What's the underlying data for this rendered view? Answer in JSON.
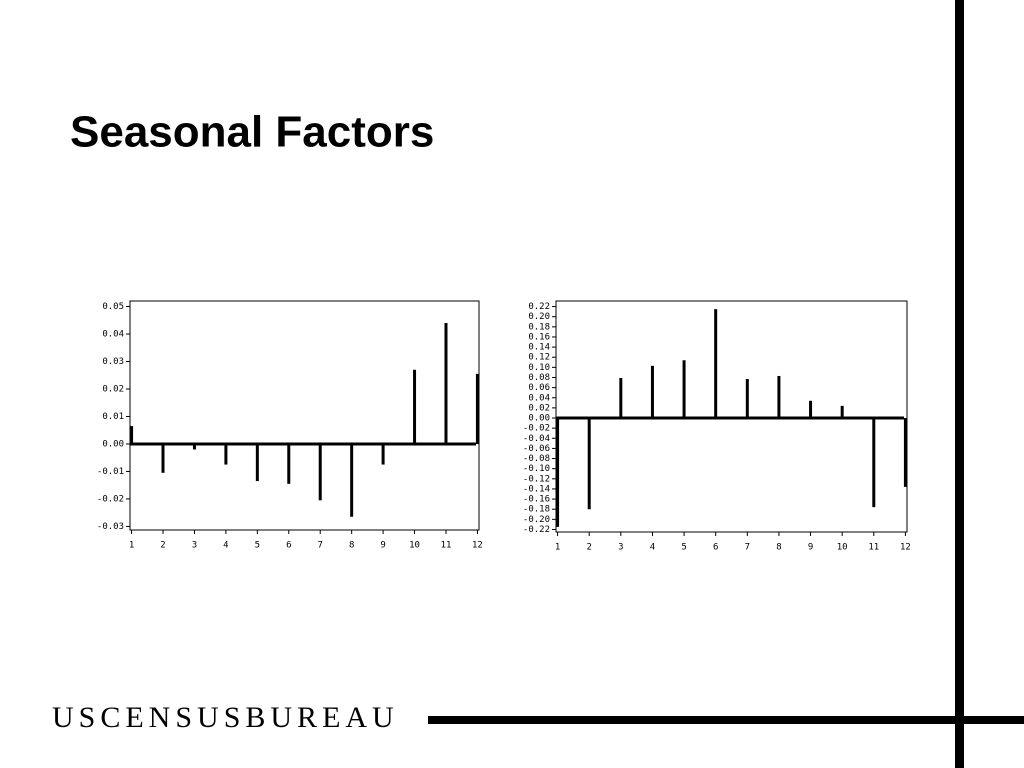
{
  "title": "Seasonal Factors",
  "footer": "USCENSUSBUREAU",
  "chart_data": [
    {
      "type": "bar",
      "color": "#000000",
      "x": [
        1,
        2,
        3,
        4,
        5,
        6,
        7,
        8,
        9,
        10,
        11,
        12
      ],
      "values": [
        0.0065,
        -0.0105,
        -0.002,
        -0.0075,
        -0.0135,
        -0.0145,
        -0.0205,
        -0.0265,
        -0.0075,
        0.027,
        0.044,
        0.0255
      ],
      "xlim": [
        0.95,
        12.05
      ],
      "xticks": [
        1,
        2,
        3,
        4,
        5,
        6,
        7,
        8,
        9,
        10,
        11,
        12
      ],
      "ylim": [
        -0.0313,
        0.052
      ],
      "yticks": [
        -0.03,
        -0.02,
        -0.01,
        {
          "value": 0,
          "label": "0.00"
        },
        0.01,
        0.02,
        0.03,
        0.04,
        0.05
      ]
    },
    {
      "type": "bar",
      "color": "#000000",
      "x": [
        1,
        2,
        3,
        4,
        5,
        6,
        7,
        8,
        9,
        10,
        11,
        12
      ],
      "values": [
        -0.215,
        -0.18,
        0.079,
        0.103,
        0.114,
        0.215,
        0.077,
        0.083,
        0.034,
        0.024,
        -0.176,
        -0.136
      ],
      "xlim": [
        0.95,
        12.05
      ],
      "xticks": [
        1,
        2,
        3,
        4,
        5,
        6,
        7,
        8,
        9,
        10,
        11,
        12
      ],
      "ylim": [
        -0.225,
        0.231
      ],
      "yticks": [
        {
          "value": -0.22,
          "label": "-0.22"
        },
        {
          "value": -0.2,
          "label": "-0.20"
        },
        -0.18,
        -0.16,
        -0.14,
        -0.12,
        {
          "value": -0.1,
          "label": "-0.10"
        },
        -0.08,
        -0.06,
        -0.04,
        -0.02,
        {
          "value": 0,
          "label": "0.00"
        },
        0.02,
        0.04,
        0.06,
        0.08,
        {
          "value": 0.1,
          "label": "0.10"
        },
        0.12,
        0.14,
        0.16,
        0.18,
        {
          "value": 0.2,
          "label": "0.20"
        },
        0.22
      ]
    }
  ]
}
